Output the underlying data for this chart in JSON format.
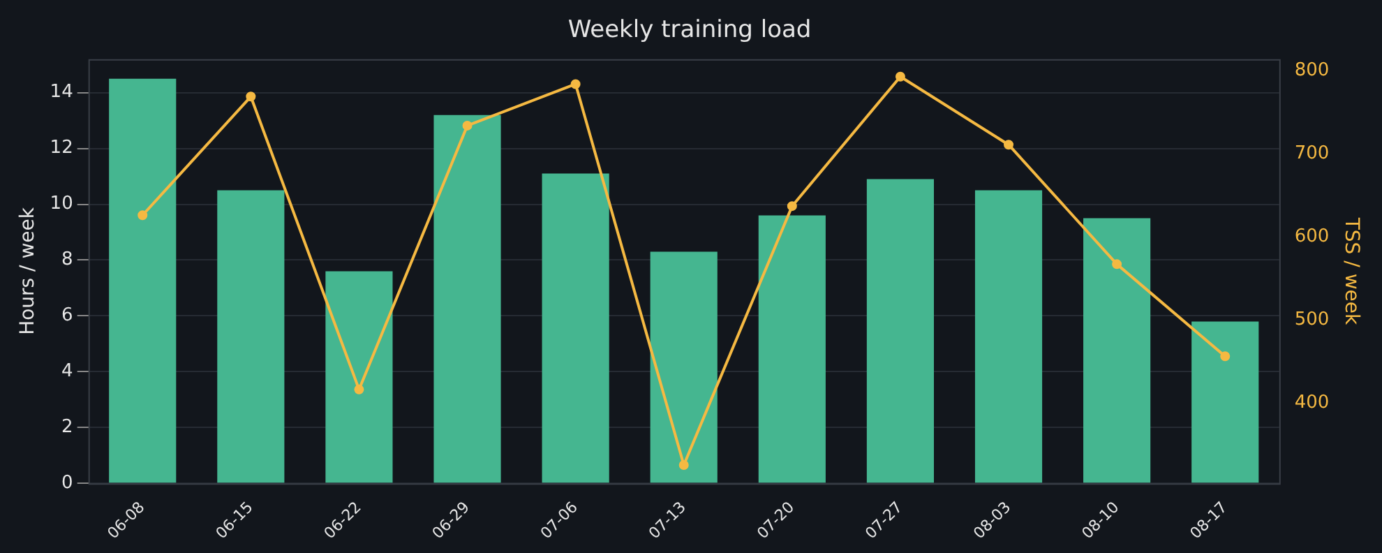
{
  "chart_data": {
    "type": "bar",
    "title": "Weekly training load",
    "ylabel": "Hours / week",
    "y2label": "TSS / week",
    "categories": [
      "06-08",
      "06-15",
      "06-22",
      "06-29",
      "07-06",
      "07-13",
      "07-20",
      "07-27",
      "08-03",
      "08-10",
      "08-17"
    ],
    "series": [
      {
        "color": "#45b690",
        "values": [
          14.5,
          10.5,
          7.6,
          13.2,
          11.1,
          8.3,
          9.6,
          10.9,
          10.5,
          9.5,
          5.8
        ]
      },
      {
        "type": "line",
        "axis": "y2",
        "color": "#f5b942",
        "marker": "circle",
        "values": [
          626,
          769,
          416,
          734,
          784,
          325,
          637,
          793,
          711,
          567,
          456
        ]
      }
    ],
    "ylim": [
      0,
      15.2
    ],
    "yticks": [
      0,
      2,
      4,
      6,
      8,
      10,
      12,
      14
    ],
    "y2lim": [
      303,
      814
    ],
    "y2ticks": [
      400,
      500,
      600,
      700,
      800
    ],
    "grid": "y",
    "legend": false
  }
}
